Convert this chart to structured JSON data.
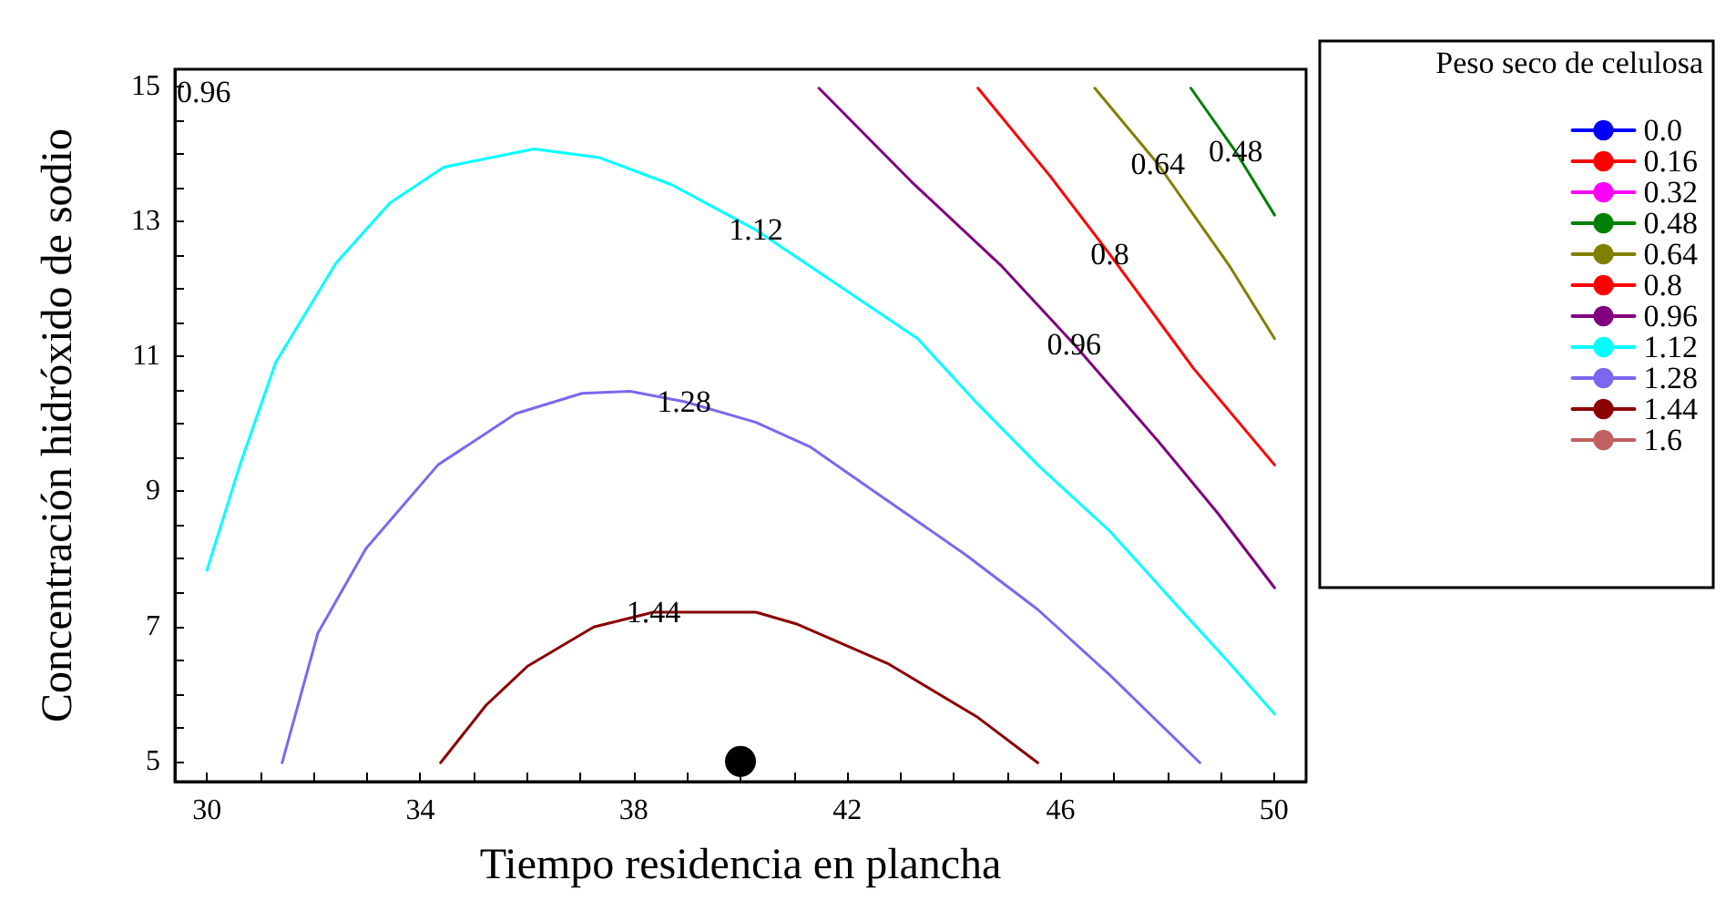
{
  "chart_data": {
    "type": "line",
    "xlabel": "Tiempo residencia en plancha",
    "ylabel": "Concentración hidróxido de sodio",
    "legend_title": "Peso seco de celulosa",
    "legend": "right",
    "grid": false,
    "marker": "none",
    "line_style": "solid",
    "xlim": [
      29.4,
      50.6
    ],
    "ylim": [
      4.7,
      15.25
    ],
    "xticks": [
      30,
      {
        "value": 31,
        "label": null
      },
      {
        "value": 32,
        "label": null
      },
      {
        "value": 33,
        "label": null
      },
      34,
      {
        "value": 35,
        "label": null
      },
      {
        "value": 36,
        "label": null
      },
      {
        "value": 37,
        "label": null
      },
      38,
      {
        "value": 39,
        "label": null
      },
      {
        "value": 40,
        "label": null
      },
      {
        "value": 41,
        "label": null
      },
      42,
      {
        "value": 43,
        "label": null
      },
      {
        "value": 44,
        "label": null
      },
      {
        "value": 45,
        "label": null
      },
      46,
      {
        "value": 47,
        "label": null
      },
      {
        "value": 48,
        "label": null
      },
      {
        "value": 49,
        "label": null
      },
      50
    ],
    "yticks": [
      5,
      {
        "value": 5.5,
        "label": null
      },
      {
        "value": 6,
        "label": null
      },
      {
        "value": 6.5,
        "label": null
      },
      7,
      {
        "value": 7.5,
        "label": null
      },
      {
        "value": 8,
        "label": null
      },
      {
        "value": 8.5,
        "label": null
      },
      9,
      {
        "value": 9.5,
        "label": null
      },
      {
        "value": 10,
        "label": null
      },
      {
        "value": 10.5,
        "label": null
      },
      11,
      {
        "value": 11.5,
        "label": null
      },
      {
        "value": 12,
        "label": null
      },
      {
        "value": 12.5,
        "label": null
      },
      13,
      {
        "value": 13.5,
        "label": null
      },
      {
        "value": 14,
        "label": null
      },
      {
        "value": 14.5,
        "label": null
      },
      15
    ],
    "series": [
      {
        "name": "0.0",
        "color": "#0000ff"
      },
      {
        "name": "0.16",
        "color": "#ff0000"
      },
      {
        "name": "0.32",
        "color": "#ff00ff"
      },
      {
        "name": "0.48",
        "color": "#008000",
        "x": [
          48.44,
          49.28,
          50.01
        ],
        "values": [
          14.97,
          14.03,
          13.09
        ]
      },
      {
        "name": "0.64",
        "color": "#808000",
        "x": [
          46.64,
          47.82,
          49.17,
          50.01
        ],
        "values": [
          14.97,
          13.85,
          12.33,
          11.26
        ]
      },
      {
        "name": "0.8",
        "color": "#ff0000",
        "x": [
          44.45,
          45.8,
          46.92,
          48.49,
          50.01
        ],
        "values": [
          14.97,
          13.67,
          12.51,
          10.82,
          9.39
        ]
      },
      {
        "name": "0.96",
        "color": "#800080",
        "x": [
          41.47,
          43.21,
          44.9,
          46.25,
          47.82,
          48.94,
          50.01
        ],
        "values": [
          14.97,
          13.58,
          12.33,
          11.18,
          9.75,
          8.68,
          7.57
        ]
      },
      {
        "name": "1.12",
        "color": "#00ffff",
        "x": [
          30.0,
          30.62,
          31.29,
          32.42,
          33.43,
          34.44,
          36.13,
          37.36,
          38.71,
          40.29,
          41.97,
          43.32,
          44.45,
          45.57,
          46.92,
          48.04,
          49.17,
          50.01
        ],
        "values": [
          7.83,
          9.39,
          10.91,
          12.38,
          13.27,
          13.8,
          14.07,
          13.94,
          13.54,
          12.87,
          11.98,
          11.26,
          10.29,
          9.39,
          8.41,
          7.43,
          6.45,
          5.7
        ]
      },
      {
        "name": "1.28",
        "color": "#7b68ee",
        "x": [
          31.41,
          32.08,
          32.98,
          34.33,
          35.79,
          37.03,
          37.93,
          38.94,
          40.29,
          41.3,
          42.76,
          44.22,
          45.57,
          46.92,
          48.61
        ],
        "values": [
          4.98,
          6.9,
          8.15,
          9.39,
          10.15,
          10.45,
          10.48,
          10.33,
          10.02,
          9.66,
          8.86,
          8.06,
          7.25,
          6.28,
          4.98
        ]
      },
      {
        "name": "1.44",
        "color": "#8b0000",
        "x": [
          34.38,
          35.23,
          36.01,
          37.25,
          38.37,
          40.29,
          41.07,
          42.76,
          44.45,
          45.57
        ],
        "values": [
          4.98,
          5.83,
          6.41,
          6.99,
          7.21,
          7.21,
          7.03,
          6.45,
          5.65,
          4.98
        ]
      },
      {
        "name": "1.6",
        "color": "#c06060"
      },
      {
        "type": "scatter",
        "marker": "circle",
        "color": "#000000",
        "x": [
          40
        ],
        "values": [
          5
        ]
      }
    ],
    "annotations": [
      "0.96",
      {
        "text": "1.12",
        "x": 40.29,
        "y": 12.87
      },
      {
        "text": "1.28",
        "x": 38.94,
        "y": 10.33
      },
      {
        "text": "1.44",
        "x": 38.37,
        "y": 7.21
      },
      {
        "text": "0.96",
        "x": 46.25,
        "y": 11.18
      },
      {
        "text": "0.8",
        "x": 46.92,
        "y": 12.51
      },
      {
        "text": "0.64",
        "x": 47.82,
        "y": 13.85
      },
      {
        "text": "0.48",
        "x": 49.28,
        "y": 14.03
      }
    ]
  }
}
